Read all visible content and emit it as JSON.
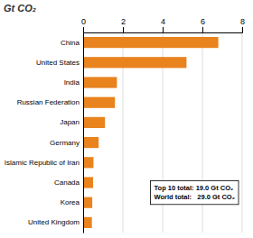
{
  "chart_data": {
    "type": "bar",
    "orientation": "horizontal",
    "title": "Gt CO₂",
    "categories": [
      "China",
      "United States",
      "India",
      "Russian Federation",
      "Japan",
      "Germany",
      "Islamic Republic of Iran",
      "Canada",
      "Korea",
      "United Kingdom"
    ],
    "values": [
      6.8,
      5.2,
      1.7,
      1.6,
      1.1,
      0.78,
      0.52,
      0.5,
      0.46,
      0.44
    ],
    "color": "#E8831E",
    "xlim": [
      0,
      8
    ],
    "xticks": [
      0,
      2,
      4,
      6,
      8
    ],
    "grid": true,
    "annotations": [
      "Top 10 total: 19.0 Gt CO₂",
      "World total:   29.0 Gt CO₂"
    ]
  }
}
